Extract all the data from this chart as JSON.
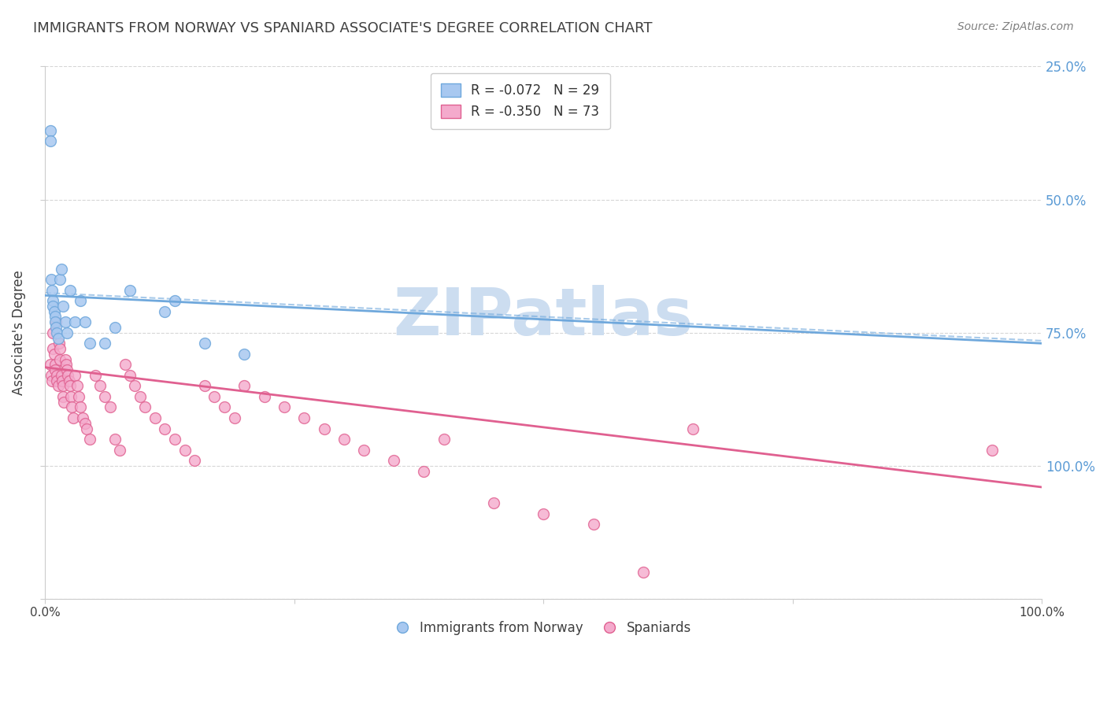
{
  "title": "IMMIGRANTS FROM NORWAY VS SPANIARD ASSOCIATE'S DEGREE CORRELATION CHART",
  "source": "Source: ZipAtlas.com",
  "ylabel": "Associate's Degree",
  "right_yticks": [
    "100.0%",
    "75.0%",
    "50.0%",
    "25.0%"
  ],
  "right_ytick_vals": [
    1.0,
    0.75,
    0.5,
    0.25
  ],
  "legend_label_norway": "R = -0.072   N = 29",
  "legend_label_spaniard": "R = -0.350   N = 73",
  "legend_label1": "Immigrants from Norway",
  "legend_label2": "Spaniards",
  "watermark": "ZIPatlas",
  "norway_x": [
    0.5,
    0.5,
    0.6,
    0.7,
    0.8,
    0.8,
    0.9,
    1.0,
    1.0,
    1.1,
    1.2,
    1.3,
    1.5,
    1.6,
    1.8,
    2.0,
    2.2,
    2.5,
    3.0,
    3.5,
    4.0,
    4.5,
    6.0,
    7.0,
    8.5,
    12.0,
    13.0,
    16.0,
    20.0
  ],
  "norway_y": [
    88.0,
    86.0,
    60.0,
    58.0,
    56.0,
    55.0,
    54.0,
    53.0,
    52.0,
    51.0,
    50.0,
    49.0,
    60.0,
    62.0,
    55.0,
    52.0,
    50.0,
    58.0,
    52.0,
    56.0,
    52.0,
    48.0,
    48.0,
    51.0,
    58.0,
    54.0,
    56.0,
    48.0,
    46.0
  ],
  "spaniard_x": [
    0.5,
    0.6,
    0.7,
    0.8,
    0.8,
    0.9,
    1.0,
    1.0,
    1.1,
    1.2,
    1.2,
    1.3,
    1.4,
    1.5,
    1.5,
    1.6,
    1.7,
    1.8,
    1.8,
    1.9,
    2.0,
    2.1,
    2.2,
    2.3,
    2.4,
    2.5,
    2.6,
    2.7,
    2.8,
    3.0,
    3.2,
    3.4,
    3.5,
    3.8,
    4.0,
    4.2,
    4.5,
    5.0,
    5.5,
    6.0,
    6.5,
    7.0,
    7.5,
    8.0,
    8.5,
    9.0,
    9.5,
    10.0,
    11.0,
    12.0,
    13.0,
    14.0,
    15.0,
    16.0,
    17.0,
    18.0,
    19.0,
    20.0,
    22.0,
    24.0,
    26.0,
    28.0,
    30.0,
    32.0,
    35.0,
    38.0,
    40.0,
    45.0,
    50.0,
    55.0,
    60.0,
    65.0,
    95.0
  ],
  "spaniard_y": [
    44.0,
    42.0,
    41.0,
    50.0,
    47.0,
    46.0,
    44.0,
    43.0,
    52.0,
    42.0,
    41.0,
    40.0,
    48.0,
    47.0,
    45.0,
    42.0,
    41.0,
    40.0,
    38.0,
    37.0,
    45.0,
    44.0,
    43.0,
    42.0,
    41.0,
    40.0,
    38.0,
    36.0,
    34.0,
    42.0,
    40.0,
    38.0,
    36.0,
    34.0,
    33.0,
    32.0,
    30.0,
    42.0,
    40.0,
    38.0,
    36.0,
    30.0,
    28.0,
    44.0,
    42.0,
    40.0,
    38.0,
    36.0,
    34.0,
    32.0,
    30.0,
    28.0,
    26.0,
    40.0,
    38.0,
    36.0,
    34.0,
    40.0,
    38.0,
    36.0,
    34.0,
    32.0,
    30.0,
    28.0,
    26.0,
    24.0,
    30.0,
    18.0,
    16.0,
    14.0,
    5.0,
    32.0,
    28.0
  ],
  "norway_color": "#6fa8dc",
  "norway_marker_facecolor": "#a8c8f0",
  "norway_marker_edgecolor": "#6fa8dc",
  "spaniard_color": "#e06090",
  "spaniard_marker_facecolor": "#f4aacc",
  "spaniard_marker_edgecolor": "#e06090",
  "norway_trend_y0": 57.0,
  "norway_trend_y1": 48.0,
  "spaniard_trend_y0": 43.5,
  "spaniard_trend_y1": 21.0,
  "dashed_line_y0": 57.5,
  "dashed_line_y1": 48.5,
  "xlim_pct": [
    0.0,
    100.0
  ],
  "ylim_pct": [
    0.0,
    100.0
  ],
  "bg_color": "#ffffff",
  "grid_color": "#cccccc",
  "right_axis_color": "#5b9bd5",
  "title_color": "#404040",
  "title_fontsize": 13,
  "source_fontsize": 10,
  "watermark_color": "#ccddf0",
  "watermark_fontsize": 60,
  "marker_size": 100
}
